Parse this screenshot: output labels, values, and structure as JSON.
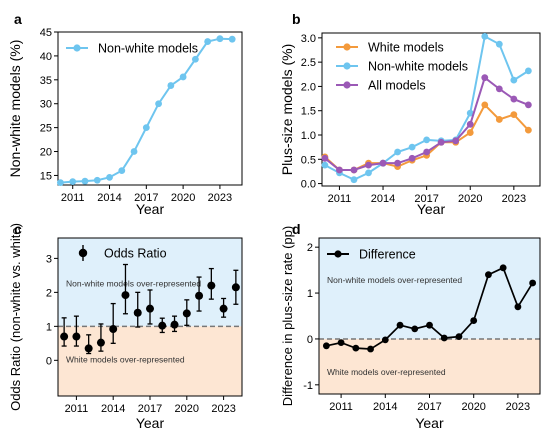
{
  "chart_data": [
    {
      "panel": "a",
      "type": "line",
      "xlabel": "Year",
      "ylabel": "Non-white models (%)",
      "xticks": [
        "2011",
        "2014",
        "2017",
        "2020",
        "2023"
      ],
      "yticks": [
        "15",
        "20",
        "25",
        "30",
        "35",
        "40",
        "45"
      ],
      "xlim": [
        2009.8,
        2024.8
      ],
      "ylim": [
        13,
        45
      ],
      "x": [
        2010,
        2011,
        2012,
        2013,
        2014,
        2015,
        2016,
        2017,
        2018,
        2019,
        2020,
        2021,
        2022,
        2023,
        2024
      ],
      "series": [
        {
          "name": "Non-white models",
          "color": "#6ec5ef",
          "values": [
            13.5,
            13.7,
            13.8,
            14.0,
            14.6,
            16.0,
            20.0,
            25.0,
            30.0,
            33.8,
            35.6,
            39.3,
            43.0,
            43.6,
            43.5
          ]
        }
      ]
    },
    {
      "panel": "b",
      "type": "line",
      "xlabel": "Year",
      "ylabel": "Plus-size models (%)",
      "xticks": [
        "2011",
        "2014",
        "2017",
        "2020",
        "2023"
      ],
      "yticks": [
        "0.0",
        "0.5",
        "1.0",
        "1.5",
        "2.0",
        "2.5",
        "3.0"
      ],
      "xlim": [
        2009.8,
        2024.8
      ],
      "ylim": [
        -0.05,
        3.1
      ],
      "x": [
        2010,
        2011,
        2012,
        2013,
        2014,
        2015,
        2016,
        2017,
        2018,
        2019,
        2020,
        2021,
        2022,
        2023,
        2024
      ],
      "series": [
        {
          "name": "White models",
          "color": "#f39a3c",
          "values": [
            0.55,
            0.28,
            0.28,
            0.42,
            0.42,
            0.35,
            0.48,
            0.58,
            0.85,
            0.85,
            1.05,
            1.62,
            1.32,
            1.42,
            1.1
          ]
        },
        {
          "name": "Non-white models",
          "color": "#6ec5ef",
          "values": [
            0.38,
            0.22,
            0.08,
            0.22,
            0.42,
            0.65,
            0.75,
            0.9,
            0.88,
            0.9,
            1.45,
            3.03,
            2.87,
            2.13,
            2.32
          ]
        },
        {
          "name": "All models",
          "color": "#9b59b6",
          "values": [
            0.52,
            0.28,
            0.28,
            0.38,
            0.42,
            0.42,
            0.52,
            0.65,
            0.85,
            0.88,
            1.22,
            2.18,
            1.95,
            1.74,
            1.62
          ]
        }
      ]
    },
    {
      "panel": "c",
      "type": "scatter",
      "xlabel": "Year",
      "ylabel": "Odds Ratio (non-white vs. white)",
      "xticks": [
        "2011",
        "2014",
        "2017",
        "2020",
        "2023"
      ],
      "yticks": [
        "0",
        "1",
        "2",
        "3"
      ],
      "xlim": [
        2009.5,
        2024.5
      ],
      "ylim": [
        -1.05,
        3.6
      ],
      "reference_line": 1,
      "x": [
        2010,
        2011,
        2012,
        2013,
        2014,
        2015,
        2016,
        2017,
        2018,
        2019,
        2020,
        2021,
        2022,
        2023,
        2024
      ],
      "series": [
        {
          "name": "Odds Ratio",
          "color": "#000000",
          "values": [
            0.7,
            0.7,
            0.35,
            0.52,
            0.92,
            1.92,
            1.4,
            1.52,
            1.02,
            1.05,
            1.38,
            1.9,
            2.2,
            1.52,
            2.15
          ],
          "err_low": [
            0.28,
            0.28,
            0.15,
            0.25,
            0.42,
            0.55,
            0.42,
            0.45,
            0.2,
            0.2,
            0.35,
            0.45,
            0.4,
            0.25,
            0.5
          ],
          "err_high": [
            0.55,
            0.6,
            0.4,
            0.55,
            0.75,
            0.9,
            0.6,
            0.55,
            0.22,
            0.25,
            0.4,
            0.55,
            0.5,
            0.3,
            0.5
          ]
        }
      ],
      "regions": {
        "upper": {
          "label": "Non-white models over-represented",
          "color": "#dff0fb"
        },
        "lower": {
          "label": "White models over-represented",
          "color": "#fde6d3"
        }
      }
    },
    {
      "panel": "d",
      "type": "line",
      "xlabel": "Year",
      "ylabel": "Difference in plus-size rate (pp)",
      "xticks": [
        "2011",
        "2014",
        "2017",
        "2020",
        "2023"
      ],
      "yticks": [
        "-1",
        "0",
        "1",
        "2"
      ],
      "xlim": [
        2009.5,
        2024.5
      ],
      "ylim": [
        -1.2,
        2.2
      ],
      "reference_line": 0,
      "x": [
        2010,
        2011,
        2012,
        2013,
        2014,
        2015,
        2016,
        2017,
        2018,
        2019,
        2020,
        2021,
        2022,
        2023,
        2024
      ],
      "series": [
        {
          "name": "Difference",
          "color": "#000000",
          "values": [
            -0.15,
            -0.08,
            -0.2,
            -0.22,
            -0.02,
            0.3,
            0.22,
            0.3,
            0.02,
            0.05,
            0.4,
            1.4,
            1.55,
            0.7,
            1.22
          ]
        }
      ],
      "regions": {
        "upper": {
          "label": "Non-white models over-represented",
          "color": "#dff0fb"
        },
        "lower": {
          "label": "White models over-represented",
          "color": "#fde6d3"
        }
      }
    }
  ]
}
